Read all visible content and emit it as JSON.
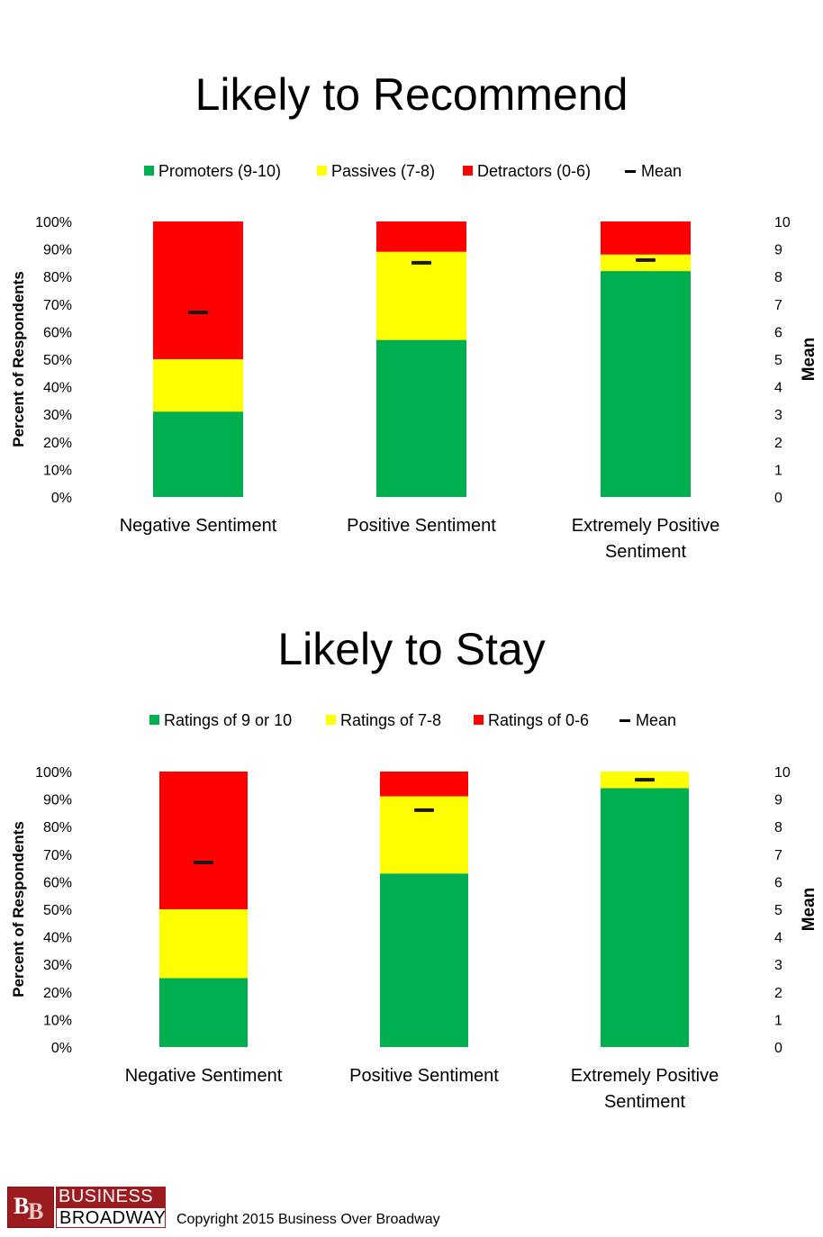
{
  "chart_data": [
    {
      "type": "bar",
      "stacked": true,
      "title": "Likely to Recommend",
      "ylabel": "Percent of Respondents",
      "y2label": "Mean",
      "ylim": [
        0,
        100
      ],
      "y2lim": [
        0,
        10
      ],
      "yticks": [
        "0%",
        "10%",
        "20%",
        "30%",
        "40%",
        "50%",
        "60%",
        "70%",
        "80%",
        "90%",
        "100%"
      ],
      "y2ticks": [
        "0",
        "1",
        "2",
        "3",
        "4",
        "5",
        "6",
        "7",
        "8",
        "9",
        "10"
      ],
      "legend_position": "top",
      "categories": [
        [
          "Negative Sentiment"
        ],
        [
          "Positive Sentiment"
        ],
        [
          "Extremely Positive",
          "Sentiment"
        ]
      ],
      "series": [
        {
          "name": "Promoters (9-10)",
          "color": "#00b050",
          "values": [
            31,
            57,
            82
          ]
        },
        {
          "name": "Passives (7-8)",
          "color": "#ffff00",
          "values": [
            19,
            32,
            6
          ]
        },
        {
          "name": "Detractors (0-6)",
          "color": "#ff0000",
          "values": [
            50,
            11,
            12
          ]
        }
      ],
      "mean": {
        "name": "Mean",
        "values": [
          6.7,
          8.5,
          8.6
        ]
      }
    },
    {
      "type": "bar",
      "stacked": true,
      "title": "Likely to Stay",
      "ylabel": "Percent of Respondents",
      "y2label": "Mean",
      "ylim": [
        0,
        100
      ],
      "y2lim": [
        0,
        10
      ],
      "yticks": [
        "0%",
        "10%",
        "20%",
        "30%",
        "40%",
        "50%",
        "60%",
        "70%",
        "80%",
        "90%",
        "100%"
      ],
      "y2ticks": [
        "0",
        "1",
        "2",
        "3",
        "4",
        "5",
        "6",
        "7",
        "8",
        "9",
        "10"
      ],
      "legend_position": "top",
      "categories": [
        [
          "Negative Sentiment"
        ],
        [
          "Positive Sentiment"
        ],
        [
          "Extremely Positive",
          "Sentiment"
        ]
      ],
      "series": [
        {
          "name": "Ratings of 9 or 10",
          "color": "#00b050",
          "values": [
            25,
            63,
            94
          ]
        },
        {
          "name": "Ratings of 7-8",
          "color": "#ffff00",
          "values": [
            25,
            28,
            6
          ]
        },
        {
          "name": "Ratings of 0-6",
          "color": "#ff0000",
          "values": [
            50,
            9,
            0
          ]
        }
      ],
      "mean": {
        "name": "Mean",
        "values": [
          6.7,
          8.6,
          9.7
        ]
      }
    }
  ],
  "footer": {
    "logo_top": "BUSINESS",
    "logo_bottom": "BROADWAY",
    "logo_mark": "BB",
    "copyright": "Copyright 2015 Business Over Broadway"
  }
}
